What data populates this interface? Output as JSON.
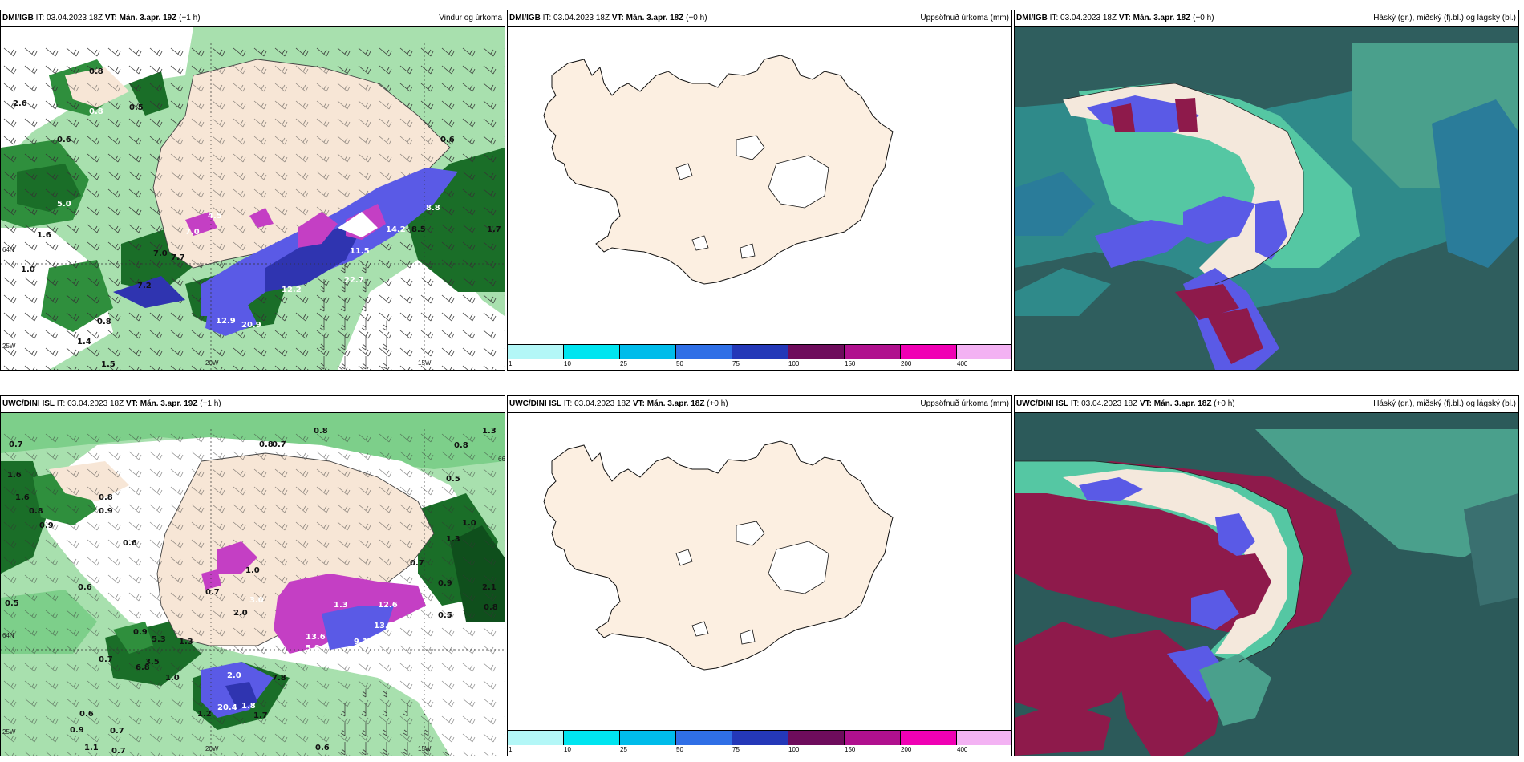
{
  "colors": {
    "land": "#f7e6d6",
    "sea_white": "#ffffff",
    "green_light": "#b6e7b8",
    "green_mid": "#5fbf6c",
    "green_dark": "#1a6e28",
    "blue": "#5a5ae6",
    "magenta": "#c43fc4",
    "teal": "#2f8a8a",
    "dark_teal": "#2c5a5a",
    "crimson": "#8e1a4b",
    "aqua": "#55c7a3"
  },
  "panels": [
    {
      "model": "DMI/IGB",
      "it": "IT: 03.04.2023 18Z",
      "vt_label": "VT:",
      "vt": "Mán. 3.apr. 19Z",
      "lead": "(+1 h)",
      "title": "Vindur og úrkoma"
    },
    {
      "model": "DMI/IGB",
      "it": "IT: 03.04.2023 18Z",
      "vt_label": "VT:",
      "vt": "Mán. 3.apr. 18Z",
      "lead": "(+0 h)",
      "title": "Uppsöfnuð úrkoma (mm)"
    },
    {
      "model": "DMI/IGB",
      "it": "IT: 03.04.2023 18Z",
      "vt_label": "VT:",
      "vt": "Mán. 3.apr. 18Z",
      "lead": "(+0 h)",
      "title": "Háský (gr.), miðský (fj.bl.) og lágský (bl.)"
    },
    {
      "model": "UWC/DINI ISL",
      "it": "IT: 03.04.2023 18Z",
      "vt_label": "VT:",
      "vt": "Mán. 3.apr. 19Z",
      "lead": "(+1 h)",
      "title": ""
    },
    {
      "model": "UWC/DINI ISL",
      "it": "IT: 03.04.2023 18Z",
      "vt_label": "VT:",
      "vt": "Mán. 3.apr. 18Z",
      "lead": "(+0 h)",
      "title": "Uppsöfnuð úrkoma (mm)"
    },
    {
      "model": "UWC/DINI ISL",
      "it": "IT: 03.04.2023 18Z",
      "vt_label": "VT:",
      "vt": "Mán. 3.apr. 18Z",
      "lead": "(+0 h)",
      "title": "Háský (gr.), miðský (fj.bl.) og lágský (bl.)"
    }
  ],
  "colorbar": {
    "labels": [
      "1",
      "10",
      "25",
      "50",
      "75",
      "100",
      "150",
      "200",
      "400"
    ],
    "colors": [
      "#b3f7f7",
      "#00e5f0",
      "#00bcea",
      "#2f6fe6",
      "#2438b8",
      "#6e0c5c",
      "#b0108e",
      "#f000b4",
      "#f3b2f3"
    ]
  },
  "axis_labels": {
    "top_left": [
      "20W",
      "15W",
      "25W",
      "64N"
    ],
    "bottom_left": [
      "20W",
      "15W",
      "25W",
      "64N",
      "66N"
    ]
  },
  "precip_labels_top": [
    "0.8",
    "2.6",
    "0.8",
    "0.5",
    "0.6",
    "0.6",
    "5.0",
    "1.6",
    "1.0",
    "7.0",
    "7.7",
    "7.2",
    "0.8",
    "1.4",
    "1.5",
    "12.9",
    "20.9",
    "4.5",
    "12.2",
    "22.7",
    "11.5",
    "14.2",
    "8.8",
    "8.5",
    "1.7",
    "7.0"
  ],
  "precip_labels_bottom": [
    "0.7",
    "0.8",
    "0.7",
    "0.8",
    "1.3",
    "1.6",
    "1.6",
    "0.8",
    "0.9",
    "0.8",
    "0.9",
    "0.6",
    "0.6",
    "0.5",
    "0.9",
    "1.0",
    "3.0",
    "0.7",
    "2.0",
    "6.8",
    "3.5",
    "5.3",
    "1.3",
    "1.0",
    "0.7",
    "2.0",
    "1.2",
    "7.8",
    "20.4",
    "1.8",
    "1.7",
    "0.7",
    "0.6",
    "0.9",
    "1.1",
    "0.7",
    "0.6",
    "1.3",
    "5.8",
    "13.6",
    "9.1",
    "12.6",
    "13.0",
    "0.7",
    "0.9",
    "0.5",
    "0.8",
    "1.0",
    "1.3",
    "2.1",
    "0.8",
    "0.5"
  ]
}
